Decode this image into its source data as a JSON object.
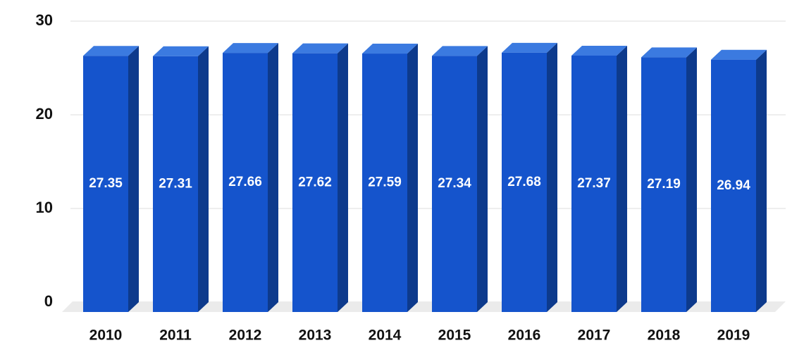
{
  "chart_data": {
    "type": "bar3d",
    "categories": [
      "2010",
      "2011",
      "2012",
      "2013",
      "2014",
      "2015",
      "2016",
      "2017",
      "2018",
      "2019"
    ],
    "values": [
      27.35,
      27.31,
      27.66,
      27.62,
      27.59,
      27.34,
      27.68,
      27.37,
      27.19,
      26.94
    ],
    "color": "#1554cc",
    "ylim": [
      0,
      30
    ],
    "yticks": [
      0,
      10,
      20,
      30
    ],
    "grid": true
  }
}
